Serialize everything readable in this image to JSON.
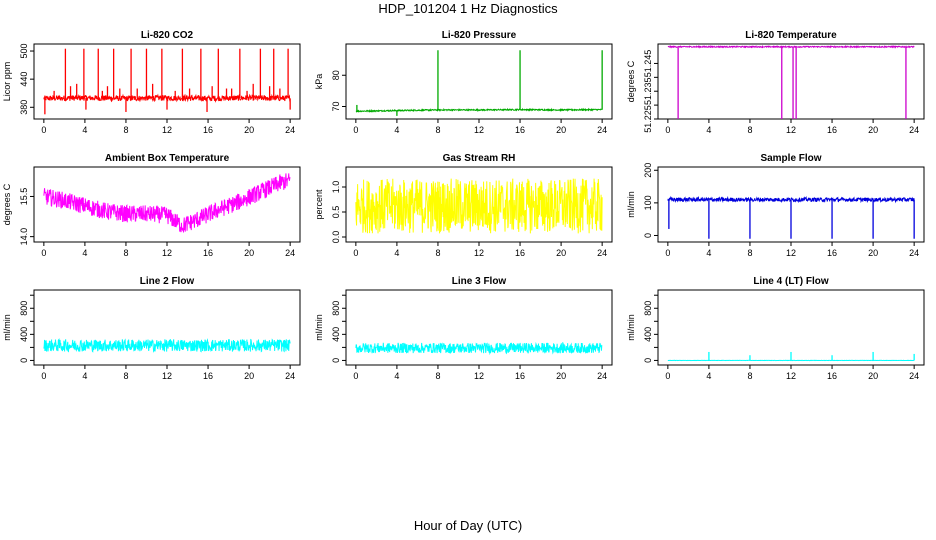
{
  "page": {
    "title": "HDP_101204  1 Hz Diagnostics",
    "x_caption": "Hour of Day (UTC)"
  },
  "chart_data": [
    {
      "type": "line",
      "title": "Li-820 CO2",
      "ylabel": "Licor ppm",
      "color": "#ff0000",
      "xlim": [
        0,
        24
      ],
      "ylim": [
        355,
        515
      ],
      "xticks": [
        0,
        4,
        8,
        12,
        16,
        20,
        24
      ],
      "yticks": [
        380,
        440,
        500
      ],
      "baseline": [
        [
          0,
          399
        ],
        [
          4,
          400
        ],
        [
          8,
          399
        ],
        [
          12,
          400
        ],
        [
          16,
          399
        ],
        [
          20,
          400
        ],
        [
          24,
          399
        ]
      ],
      "noise": 6,
      "spikes": [
        [
          0.1,
          365
        ],
        [
          1.0,
          415
        ],
        [
          2.1,
          505
        ],
        [
          2.6,
          425
        ],
        [
          3.2,
          430
        ],
        [
          3.9,
          505
        ],
        [
          4.1,
          375
        ],
        [
          5.3,
          505
        ],
        [
          5.7,
          415
        ],
        [
          6.2,
          425
        ],
        [
          6.8,
          505
        ],
        [
          7.4,
          420
        ],
        [
          8.0,
          370
        ],
        [
          8.5,
          505
        ],
        [
          9.1,
          420
        ],
        [
          10.0,
          505
        ],
        [
          10.6,
          430
        ],
        [
          11.5,
          505
        ],
        [
          12.0,
          375
        ],
        [
          12.8,
          415
        ],
        [
          13.5,
          505
        ],
        [
          14.2,
          420
        ],
        [
          15.3,
          505
        ],
        [
          15.9,
          370
        ],
        [
          16.4,
          425
        ],
        [
          17.0,
          505
        ],
        [
          17.8,
          420
        ],
        [
          18.3,
          420
        ],
        [
          19.1,
          505
        ],
        [
          19.8,
          415
        ],
        [
          20.4,
          430
        ],
        [
          21.1,
          505
        ],
        [
          22.0,
          425
        ],
        [
          22.4,
          505
        ],
        [
          23.0,
          420
        ],
        [
          23.8,
          505
        ],
        [
          24.0,
          375
        ]
      ]
    },
    {
      "type": "line",
      "title": "Li-820 Pressure",
      "ylabel": "kPa",
      "color": "#00aa00",
      "xlim": [
        0,
        24
      ],
      "ylim": [
        66,
        90
      ],
      "xticks": [
        0,
        4,
        8,
        12,
        16,
        20,
        24
      ],
      "yticks": [
        70,
        80
      ],
      "baseline": [
        [
          0,
          68.5
        ],
        [
          4,
          68.7
        ],
        [
          8,
          68.9
        ],
        [
          12,
          68.9
        ],
        [
          16,
          69.0
        ],
        [
          20,
          68.9
        ],
        [
          24,
          69.0
        ]
      ],
      "noise": 0.2,
      "spikes": [
        [
          0.1,
          70.5
        ],
        [
          4.0,
          67.0
        ],
        [
          8.0,
          88.0
        ],
        [
          16.0,
          88.0
        ],
        [
          24.0,
          88.0
        ]
      ]
    },
    {
      "type": "line",
      "title": "Li-820 Temperature",
      "ylabel": "degrees C",
      "color": "#cc00cc",
      "xlim": [
        0,
        24
      ],
      "ylim": [
        51.225,
        51.252
      ],
      "xticks": [
        0,
        4,
        8,
        12,
        16,
        20,
        24
      ],
      "yticks": [
        51.225,
        51.23,
        51.235,
        51.24,
        51.245
      ],
      "ytick_labels": [
        "51.225",
        "",
        "51.235",
        "",
        "51.245"
      ],
      "baseline": [
        [
          0,
          51.251
        ],
        [
          24,
          51.251
        ]
      ],
      "noise": 0.0002,
      "spikes": [
        [
          1.0,
          51.225
        ],
        [
          11.1,
          51.225
        ],
        [
          12.2,
          51.225
        ],
        [
          12.5,
          51.225
        ],
        [
          23.2,
          51.225
        ]
      ]
    },
    {
      "type": "line",
      "title": "Ambient Box Temperature",
      "ylabel": "degrees C",
      "color": "#ff00ff",
      "xlim": [
        0,
        24
      ],
      "ylim": [
        13.8,
        16.6
      ],
      "xticks": [
        0,
        4,
        8,
        12,
        16,
        20,
        24
      ],
      "yticks": [
        14.0,
        15.5
      ],
      "ytick_labels": [
        "14.0",
        "15.5"
      ],
      "baseline": [
        [
          0,
          15.5
        ],
        [
          2,
          15.35
        ],
        [
          4,
          15.15
        ],
        [
          6,
          14.95
        ],
        [
          8,
          14.85
        ],
        [
          10,
          14.85
        ],
        [
          12,
          14.8
        ],
        [
          13.5,
          14.4
        ],
        [
          15,
          14.65
        ],
        [
          17,
          15.0
        ],
        [
          19,
          15.3
        ],
        [
          21,
          15.65
        ],
        [
          23,
          16.0
        ],
        [
          24,
          16.1
        ]
      ],
      "noise": 0.32,
      "spikes": []
    },
    {
      "type": "line",
      "title": "Gas Stream RH",
      "ylabel": "percent",
      "color": "#ffff00",
      "xlim": [
        0,
        24
      ],
      "ylim": [
        -0.1,
        1.4
      ],
      "xticks": [
        0,
        4,
        8,
        12,
        16,
        20,
        24
      ],
      "yticks": [
        0.0,
        0.5,
        1.0
      ],
      "ytick_labels": [
        "0.0",
        "0.5",
        "1.0"
      ],
      "baseline": [
        [
          0,
          0.62
        ],
        [
          24,
          0.62
        ]
      ],
      "noise": 0.55,
      "spikes": []
    },
    {
      "type": "line",
      "title": "Sample Flow",
      "ylabel": "ml/min",
      "color": "#0000dd",
      "xlim": [
        0,
        24
      ],
      "ylim": [
        -20,
        210
      ],
      "xticks": [
        0,
        4,
        8,
        12,
        16,
        20,
        24
      ],
      "yticks": [
        0,
        100,
        200
      ],
      "baseline": [
        [
          0,
          110
        ],
        [
          24,
          110
        ]
      ],
      "noise": 6,
      "spikes": [
        [
          0.1,
          20
        ],
        [
          4.0,
          -10
        ],
        [
          8.0,
          -10
        ],
        [
          12.0,
          -10
        ],
        [
          16.0,
          -10
        ],
        [
          20.0,
          -10
        ],
        [
          24.0,
          -10
        ]
      ]
    },
    {
      "type": "line",
      "title": "Line 2 Flow",
      "ylabel": "ml/min",
      "color": "#00ffff",
      "xlim": [
        0,
        24
      ],
      "ylim": [
        -70,
        1080
      ],
      "xticks": [
        0,
        4,
        8,
        12,
        16,
        20,
        24
      ],
      "yticks": [
        0,
        200,
        400,
        600,
        800,
        1000
      ],
      "ytick_labels": [
        "0",
        "",
        "400",
        "",
        "800",
        ""
      ],
      "baseline": [
        [
          0,
          230
        ],
        [
          24,
          230
        ]
      ],
      "noise": 95,
      "spikes": []
    },
    {
      "type": "line",
      "title": "Line 3 Flow",
      "ylabel": "ml/min",
      "color": "#00ffff",
      "xlim": [
        0,
        24
      ],
      "ylim": [
        -70,
        1080
      ],
      "xticks": [
        0,
        4,
        8,
        12,
        16,
        20,
        24
      ],
      "yticks": [
        0,
        200,
        400,
        600,
        800,
        1000
      ],
      "ytick_labels": [
        "0",
        "",
        "400",
        "",
        "800",
        ""
      ],
      "baseline": [
        [
          0,
          190
        ],
        [
          24,
          190
        ]
      ],
      "noise": 80,
      "spikes": []
    },
    {
      "type": "line",
      "title": "Line 4 (LT) Flow",
      "ylabel": "ml/min",
      "color": "#00ffff",
      "xlim": [
        0,
        24
      ],
      "ylim": [
        -70,
        1080
      ],
      "xticks": [
        0,
        4,
        8,
        12,
        16,
        20,
        24
      ],
      "yticks": [
        0,
        200,
        400,
        600,
        800,
        1000
      ],
      "ytick_labels": [
        "0",
        "",
        "400",
        "",
        "800",
        ""
      ],
      "baseline": [
        [
          0,
          0
        ],
        [
          24,
          0
        ]
      ],
      "noise": 2,
      "spikes": [
        [
          4.0,
          130
        ],
        [
          8.0,
          80
        ],
        [
          12.0,
          130
        ],
        [
          16.0,
          80
        ],
        [
          20.0,
          130
        ],
        [
          24.0,
          100
        ]
      ]
    }
  ]
}
